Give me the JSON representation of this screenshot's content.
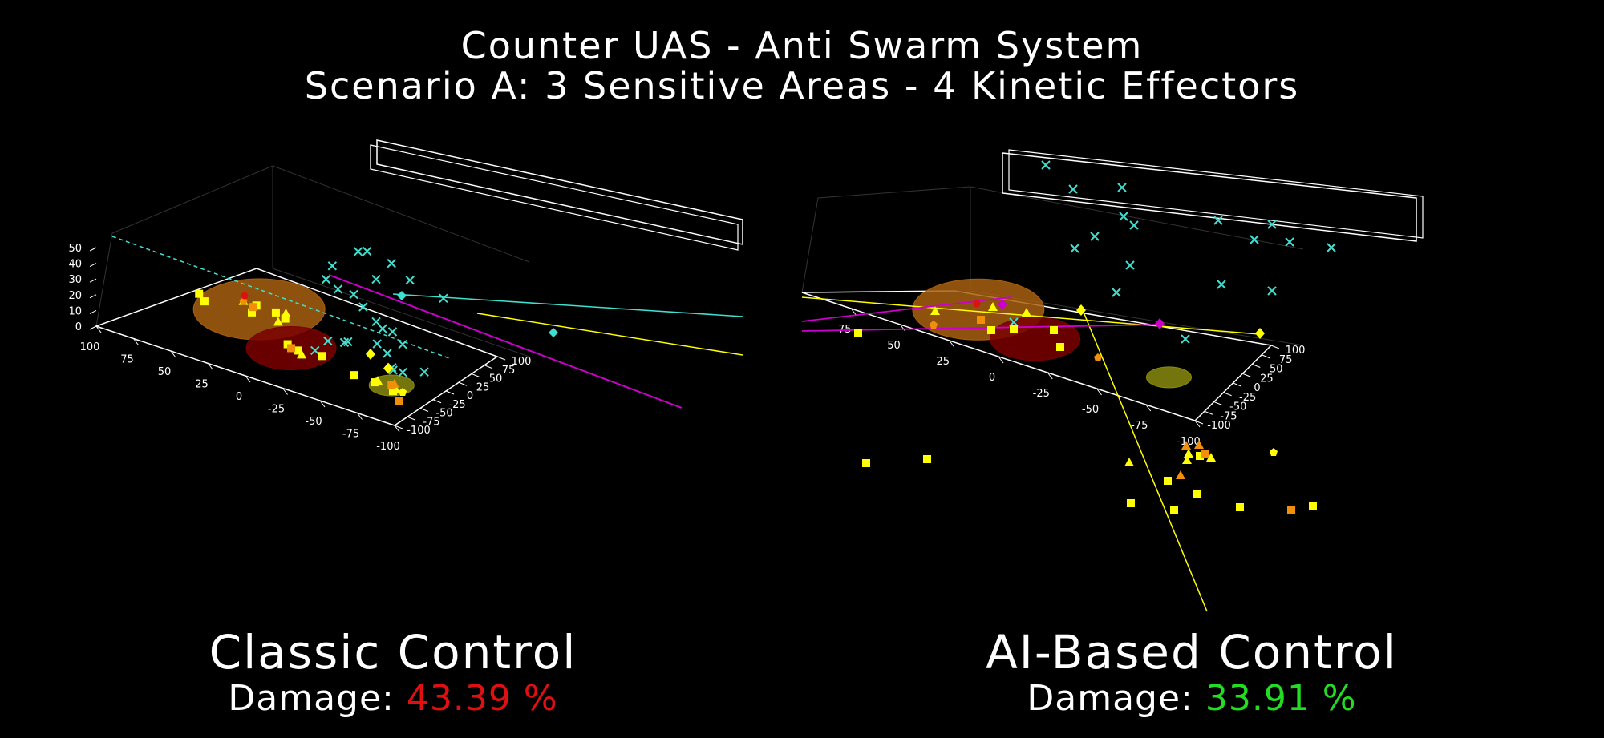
{
  "title": "Counter UAS - Anti Swarm System",
  "subtitle": "Scenario A: 3 Sensitive Areas - 4 Kinetic Effectors",
  "colors": {
    "background": "#000000",
    "drone": "#40e0d0",
    "bad": "#e01010",
    "good": "#22dd22",
    "effector": "#ffff00",
    "magenta": "#cc00cc",
    "orange": "#f0900a",
    "zone_orange": "#a86010",
    "zone_red": "#7a0000",
    "zone_yellow": "#8a8a10"
  },
  "panels": [
    {
      "caption": "Classic Control",
      "damage_label": "Damage: ",
      "damage_value": "43.39 %",
      "damage_color": "#e01010"
    },
    {
      "caption": "AI-Based Control",
      "damage_label": "Damage: ",
      "damage_value": "33.91 %",
      "damage_color": "#22dd22"
    }
  ],
  "chart_data": [
    {
      "type": "scatter",
      "projection": "3d",
      "axes": {
        "x_ticks": [
          "-100",
          "-75",
          "-50",
          "-25",
          "0",
          "25",
          "50",
          "75",
          "100"
        ],
        "y_ticks": [
          "-100",
          "-75",
          "-50",
          "-25",
          "0",
          "25",
          "50",
          "75",
          "100"
        ],
        "z_ticks": [
          "0",
          "10",
          "20",
          "30",
          "40",
          "50"
        ],
        "xlim": [
          -100,
          100
        ],
        "ylim": [
          -100,
          100
        ],
        "zlim": [
          0,
          50
        ]
      },
      "sensitive_areas": [
        {
          "color": "orange",
          "x": 55,
          "y": 30
        },
        {
          "color": "red",
          "x": 5,
          "y": -20
        },
        {
          "color": "yellow",
          "x": -70,
          "y": -25
        }
      ],
      "series": [
        {
          "marker": "x",
          "color": "drone",
          "points": [
            [
              10,
              90,
              38
            ],
            [
              0,
              85,
              42
            ],
            [
              -20,
              85,
              40
            ],
            [
              -30,
              95,
              30
            ],
            [
              -60,
              90,
              28
            ],
            [
              20,
              70,
              30
            ],
            [
              -10,
              80,
              28
            ],
            [
              25,
              70,
              20
            ],
            [
              10,
              60,
              20
            ],
            [
              -5,
              55,
              22
            ],
            [
              -15,
              50,
              18
            ],
            [
              -30,
              40,
              15
            ],
            [
              -35,
              40,
              12
            ],
            [
              -45,
              35,
              14
            ],
            [
              -55,
              30,
              10
            ],
            [
              -40,
              20,
              8
            ],
            [
              -50,
              15,
              6
            ],
            [
              -65,
              -10,
              5
            ],
            [
              -70,
              -5,
              4
            ],
            [
              -20,
              10,
              5
            ],
            [
              -10,
              5,
              4
            ],
            [
              -25,
              5,
              8
            ],
            [
              -60,
              0,
              3
            ],
            [
              -80,
              10,
              4
            ],
            [
              -10,
              -15,
              2
            ]
          ]
        },
        {
          "marker": "square",
          "color": "effector",
          "points": [
            [
              95,
              20,
              0
            ],
            [
              85,
              10,
              0
            ],
            [
              60,
              35,
              0
            ],
            [
              55,
              20,
              0
            ],
            [
              45,
              35,
              0
            ],
            [
              35,
              30,
              0
            ],
            [
              10,
              -15,
              0
            ],
            [
              0,
              -20,
              0
            ],
            [
              -15,
              -15,
              0
            ],
            [
              -45,
              -30,
              0
            ],
            [
              -60,
              -30,
              0
            ],
            [
              -75,
              -35,
              0
            ]
          ]
        },
        {
          "marker": "triangle",
          "color": "effector",
          "points": [
            [
              70,
              35,
              0
            ],
            [
              40,
              40,
              0
            ],
            [
              35,
              20,
              0
            ],
            [
              -5,
              -25,
              0
            ],
            [
              -60,
              -25,
              0
            ],
            [
              -75,
              -30,
              0
            ]
          ]
        },
        {
          "marker": "diamond",
          "color": "effector",
          "points": [
            [
              -35,
              20,
              0
            ],
            [
              -55,
              5,
              0
            ]
          ]
        },
        {
          "marker": "square",
          "color": "orange",
          "points": [
            [
              60,
              30,
              0
            ],
            [
              5,
              -20,
              0
            ],
            [
              -70,
              -25,
              0
            ],
            [
              -85,
              -50,
              0
            ]
          ]
        },
        {
          "marker": "triangle",
          "color": "orange",
          "points": [
            [
              -70,
              -20,
              0
            ]
          ]
        },
        {
          "marker": "pentagon",
          "color": "orange",
          "points": [
            [
              70,
              35,
              0
            ]
          ]
        },
        {
          "marker": "pentagon",
          "color": "effector",
          "points": [
            [
              -80,
              -30,
              0
            ]
          ]
        },
        {
          "marker": "circle",
          "color": "bad",
          "points": [
            [
              75,
              45,
              0
            ]
          ]
        }
      ]
    },
    {
      "type": "scatter",
      "projection": "3d",
      "axes": {
        "x_ticks": [
          "-100",
          "-75",
          "-50",
          "-25",
          "0",
          "25",
          "50",
          "75"
        ],
        "y_ticks": [
          "-100",
          "-75",
          "-50",
          "-25",
          "0",
          "25",
          "50",
          "75",
          "100"
        ],
        "z_ticks": [],
        "xlim": [
          -100,
          100
        ],
        "ylim": [
          -100,
          100
        ],
        "zlim": [
          0,
          50
        ]
      },
      "sensitive_areas": [
        {
          "color": "orange",
          "x": 55,
          "y": 30
        },
        {
          "color": "red",
          "x": 5,
          "y": -20
        },
        {
          "color": "yellow",
          "x": -70,
          "y": -25
        }
      ],
      "series": [
        {
          "marker": "x",
          "color": "drone",
          "points": []
        },
        {
          "marker": "square",
          "color": "effector",
          "points": []
        },
        {
          "marker": "triangle",
          "color": "effector",
          "points": []
        },
        {
          "marker": "diamond",
          "color": "effector",
          "points": []
        },
        {
          "marker": "square",
          "color": "orange",
          "points": []
        },
        {
          "marker": "circle",
          "color": "bad",
          "points": []
        },
        {
          "marker": "diamond",
          "color": "magenta",
          "points": []
        }
      ]
    }
  ]
}
